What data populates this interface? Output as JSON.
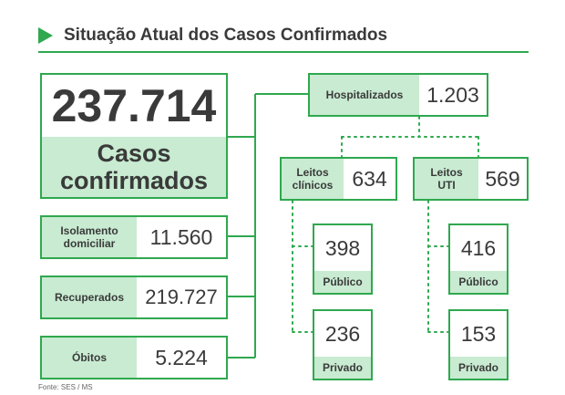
{
  "title": "Situação Atual dos Casos Confirmados",
  "source": "Fonte: SES / MS",
  "colors": {
    "accent": "#2fa84f",
    "label_fill": "#c8ebd1",
    "text": "#3a3a3a"
  },
  "total": {
    "value": "237.714",
    "label_line1": "Casos",
    "label_line2": "confirmados"
  },
  "isolamento": {
    "label_line1": "Isolamento",
    "label_line2": "domiciliar",
    "value": "11.560"
  },
  "recuperados": {
    "label": "Recuperados",
    "value": "219.727"
  },
  "obitos": {
    "label": "Óbitos",
    "value": "5.224"
  },
  "hospitalizados": {
    "label": "Hospitalizados",
    "value": "1.203"
  },
  "leitos_clinicos": {
    "label_line1": "Leitos",
    "label_line2": "clínicos",
    "value": "634",
    "publico": {
      "value": "398",
      "label": "Público"
    },
    "privado": {
      "value": "236",
      "label": "Privado"
    }
  },
  "leitos_uti": {
    "label_line1": "Leitos",
    "label_line2": "UTI",
    "value": "569",
    "publico": {
      "value": "416",
      "label": "Público"
    },
    "privado": {
      "value": "153",
      "label": "Privado"
    }
  }
}
